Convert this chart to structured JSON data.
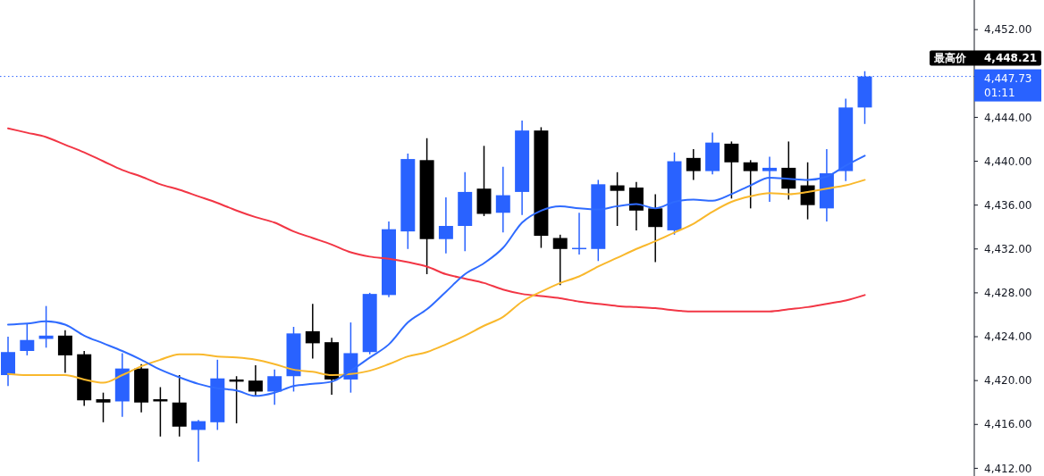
{
  "chart_data": {
    "type": "candlestick",
    "categories": [
      null,
      null,
      null,
      null,
      null,
      null,
      null,
      null,
      null,
      null,
      null,
      null,
      null,
      null,
      null,
      null,
      null,
      null,
      null,
      null,
      null,
      null,
      null,
      null,
      null,
      null,
      null,
      null,
      null,
      null,
      null,
      null,
      null,
      null,
      null,
      null,
      null,
      null,
      null,
      null,
      null,
      null,
      null,
      null,
      null,
      null,
      null,
      null,
      null,
      null,
      null
    ],
    "ohlc": [
      [
        4420.5,
        4424.0,
        4419.5,
        4422.6
      ],
      [
        4422.7,
        4425.2,
        4422.3,
        4423.7
      ],
      [
        4423.8,
        4426.8,
        4423.0,
        4424.1
      ],
      [
        4424.1,
        4424.6,
        4420.7,
        4422.3
      ],
      [
        4422.4,
        4422.7,
        4417.7,
        4418.2
      ],
      [
        4418.3,
        4418.9,
        4416.2,
        4418.0
      ],
      [
        4418.1,
        4422.5,
        4416.7,
        4421.1
      ],
      [
        4421.1,
        4421.5,
        4417.1,
        4418.0
      ],
      [
        4418.3,
        4419.4,
        4414.9,
        4418.1
      ],
      [
        4418.0,
        4420.5,
        4414.9,
        4415.8
      ],
      [
        4415.5,
        4416.4,
        4412.6,
        4416.3
      ],
      [
        4416.2,
        4421.9,
        4415.5,
        4420.2
      ],
      [
        4420.1,
        4420.4,
        4416.1,
        4419.9
      ],
      [
        4420.0,
        4421.4,
        4418.6,
        4419.0
      ],
      [
        4419.0,
        4421.0,
        4417.8,
        4420.4
      ],
      [
        4420.4,
        4424.9,
        4419.0,
        4424.3
      ],
      [
        4424.5,
        4427.0,
        4422.0,
        4423.4
      ],
      [
        4423.5,
        4423.9,
        4418.7,
        4420.1
      ],
      [
        4420.1,
        4425.3,
        4418.9,
        4422.5
      ],
      [
        4422.6,
        4428.0,
        4422.4,
        4427.9
      ],
      [
        4427.8,
        4434.5,
        4427.6,
        4433.8
      ],
      [
        4433.6,
        4440.7,
        4432.0,
        4440.2
      ],
      [
        4440.1,
        4442.1,
        4429.7,
        4432.9
      ],
      [
        4432.9,
        4436.7,
        4431.6,
        4434.1
      ],
      [
        4434.1,
        4439.0,
        4431.8,
        4437.2
      ],
      [
        4437.5,
        4441.4,
        4435.0,
        4435.2
      ],
      [
        4435.3,
        4439.5,
        4433.5,
        4436.9
      ],
      [
        4437.2,
        4443.7,
        4435.1,
        4442.8
      ],
      [
        4442.8,
        4443.1,
        4432.1,
        4433.2
      ],
      [
        4433.0,
        4433.3,
        4428.7,
        4432.0
      ],
      [
        4432.0,
        4435.3,
        4431.5,
        4432.1
      ],
      [
        4432.0,
        4438.3,
        4430.9,
        4437.9
      ],
      [
        4437.8,
        4439.0,
        4434.1,
        4437.3
      ],
      [
        4437.6,
        4438.1,
        4433.7,
        4435.5
      ],
      [
        4435.7,
        4437.0,
        4430.8,
        4434.0
      ],
      [
        4433.7,
        4440.8,
        4433.3,
        4440.0
      ],
      [
        4440.3,
        4441.1,
        4438.3,
        4439.1
      ],
      [
        4439.1,
        4442.6,
        4438.8,
        4441.7
      ],
      [
        4441.6,
        4441.8,
        4436.6,
        4439.9
      ],
      [
        4439.9,
        4440.1,
        4435.7,
        4439.1
      ],
      [
        4439.1,
        4440.4,
        4436.3,
        4439.4
      ],
      [
        4439.4,
        4441.8,
        4436.5,
        4437.5
      ],
      [
        4437.8,
        4439.9,
        4434.7,
        4436.0
      ],
      [
        4435.7,
        4441.1,
        4434.5,
        4438.9
      ],
      [
        4439.1,
        4445.7,
        4438.2,
        4444.9
      ],
      [
        4444.9,
        4448.21,
        4443.4,
        4447.73
      ],
      null,
      null,
      null,
      null,
      null
    ],
    "colors": [
      "#2962ff",
      "#2962ff",
      "#2962ff",
      "#000000",
      "#000000",
      "#000000",
      "#2962ff",
      "#000000",
      "#000000",
      "#000000",
      "#2962ff",
      "#2962ff",
      "#000000",
      "#000000",
      "#2962ff",
      "#2962ff",
      "#000000",
      "#000000",
      "#2962ff",
      "#2962ff",
      "#2962ff",
      "#2962ff",
      "#000000",
      "#2962ff",
      "#2962ff",
      "#000000",
      "#2962ff",
      "#2962ff",
      "#000000",
      "#000000",
      "#2962ff",
      "#2962ff",
      "#000000",
      "#000000",
      "#000000",
      "#2962ff",
      "#000000",
      "#2962ff",
      "#000000",
      "#000000",
      "#2962ff",
      "#000000",
      "#000000",
      "#2962ff",
      "#2962ff",
      "#2962ff",
      null,
      null,
      null,
      null,
      null
    ],
    "series": [
      {
        "type": "line",
        "color": "#f23645",
        "values": [
          4443.0,
          4442.6,
          4442.2,
          4441.5,
          4440.8,
          4440.0,
          4439.2,
          4438.6,
          4437.9,
          4437.4,
          4436.8,
          4436.2,
          4435.5,
          4434.9,
          4434.4,
          4433.6,
          4433.0,
          4432.4,
          4431.7,
          4431.3,
          4431.1,
          4430.8,
          4430.4,
          4429.7,
          4429.3,
          4428.9,
          4428.3,
          4427.9,
          4427.7,
          4427.5,
          4427.2,
          4427.0,
          4426.8,
          4426.7,
          4426.6,
          4426.4,
          4426.3,
          4426.3,
          4426.3,
          4426.3,
          4426.3,
          4426.5,
          4426.7,
          4427.0,
          4427.3,
          4427.8,
          null,
          null,
          null,
          null,
          null
        ]
      },
      {
        "type": "line",
        "color": "#f9b82c",
        "values": [
          4420.6,
          4420.5,
          4420.5,
          4420.5,
          4420.1,
          4419.8,
          4420.5,
          4421.3,
          4421.9,
          4422.4,
          4422.4,
          4422.2,
          4422.1,
          4421.9,
          4421.5,
          4421.0,
          4420.8,
          4420.5,
          4420.6,
          4420.9,
          4421.5,
          4422.2,
          4422.6,
          4423.3,
          4424.1,
          4425.0,
          4425.8,
          4427.2,
          4428.1,
          4428.9,
          4429.5,
          4430.4,
          4431.2,
          4432.0,
          4432.7,
          4433.5,
          4434.3,
          4435.4,
          4436.3,
          4436.8,
          4437.1,
          4437.0,
          4437.2,
          4437.5,
          4437.8,
          4438.3,
          null,
          null,
          null,
          null,
          null
        ]
      },
      {
        "type": "line",
        "color": "#2f6bff",
        "values": [
          4425.1,
          4425.2,
          4425.4,
          4425.1,
          4424.1,
          4423.4,
          4422.7,
          4421.9,
          4421.0,
          4420.3,
          4419.7,
          4419.3,
          4419.1,
          4418.6,
          4418.9,
          4419.5,
          4419.7,
          4419.9,
          4420.9,
          4422.1,
          4423.3,
          4425.3,
          4426.5,
          4428.1,
          4429.7,
          4430.7,
          4432.1,
          4434.4,
          4435.5,
          4435.9,
          4435.7,
          4435.6,
          4435.9,
          4436.1,
          4435.7,
          4436.3,
          4436.5,
          4436.4,
          4437.0,
          4437.8,
          4438.5,
          4438.4,
          4438.3,
          4438.6,
          4439.6,
          4440.5,
          null,
          null,
          null,
          null,
          null
        ]
      }
    ],
    "ylim": [
      4411.3,
      4454.7
    ],
    "yticks": [
      {
        "value": 4412,
        "label": "4,412.00"
      },
      {
        "value": 4416,
        "label": "4,416.00"
      },
      {
        "value": 4420,
        "label": "4,420.00"
      },
      {
        "value": 4424,
        "label": "4,424.00"
      },
      {
        "value": 4428,
        "label": "4,428.00"
      },
      {
        "value": 4432,
        "label": "4,432.00"
      },
      {
        "value": 4436,
        "label": "4,436.00"
      },
      {
        "value": 4440,
        "label": "4,440.00"
      },
      {
        "value": 4444,
        "label": "4,444.00"
      },
      {
        "value": 4452,
        "label": "4,452.00"
      }
    ],
    "ref_lines": [
      {
        "axis": "y",
        "value": 4447.73,
        "color": "#2962ff",
        "line_style": "dotted"
      }
    ],
    "annotations": [
      "最高价",
      "4,448.21",
      "4,447.73",
      "01:11"
    ],
    "tick_labels": "y"
  }
}
